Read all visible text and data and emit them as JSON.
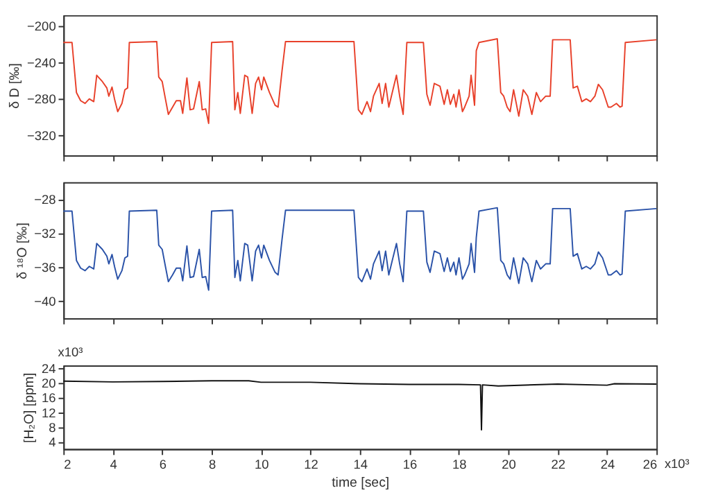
{
  "chart_data": [
    {
      "type": "line",
      "ylabel": "δ D [‰]",
      "tick_labels": "y",
      "grid": false,
      "x": [
        2.0,
        2.35,
        2.53,
        2.7,
        2.88,
        3.05,
        3.23,
        3.35,
        3.58,
        3.76,
        3.84,
        3.97,
        4.07,
        4.2,
        4.37,
        4.49,
        4.6,
        4.67,
        5.78,
        5.86,
        6.0,
        6.13,
        6.25,
        6.42,
        6.57,
        6.74,
        6.83,
        7.0,
        7.13,
        7.27,
        7.5,
        7.62,
        7.76,
        7.88,
        8.0,
        8.85,
        8.94,
        9.06,
        9.16,
        9.34,
        9.46,
        9.64,
        9.78,
        9.9,
        10.02,
        10.11,
        10.34,
        10.57,
        10.69,
        10.85,
        10.99,
        13.76,
        13.94,
        14.08,
        14.29,
        14.43,
        14.55,
        14.78,
        14.9,
        15.04,
        15.17,
        15.31,
        15.48,
        15.61,
        15.75,
        15.9,
        16.57,
        16.71,
        16.84,
        17.01,
        17.24,
        17.41,
        17.54,
        17.66,
        17.8,
        17.89,
        18.01,
        18.15,
        18.24,
        18.42,
        18.5,
        18.64,
        18.71,
        18.82,
        19.56,
        19.7,
        19.82,
        19.96,
        20.08,
        20.22,
        20.43,
        20.61,
        20.79,
        20.96,
        21.14,
        21.31,
        21.52,
        21.7,
        21.8,
        22.51,
        22.63,
        22.8,
        22.98,
        23.16,
        23.33,
        23.51,
        23.65,
        23.82,
        24.05,
        24.16,
        24.38,
        24.53,
        24.61,
        24.74,
        26.0
      ],
      "xlim": [
        2,
        26
      ],
      "xticks": [
        2,
        4,
        6,
        8,
        10,
        12,
        14,
        16,
        18,
        20,
        22,
        24,
        26
      ],
      "ylim": [
        -342,
        -188
      ],
      "yticks": [
        -320,
        -280,
        -240,
        -200
      ],
      "series": [
        {
          "color": "#e8402a",
          "values": [
            -218,
            -218,
            -273,
            -282,
            -285,
            -280,
            -283,
            -254,
            -261,
            -268,
            -277,
            -267,
            -280,
            -294,
            -285,
            -270,
            -268,
            -218,
            -217,
            -256,
            -261,
            -280,
            -297,
            -289,
            -282,
            -282,
            -296,
            -257,
            -292,
            -291,
            -261,
            -292,
            -291,
            -307,
            -218,
            -217,
            -292,
            -273,
            -296,
            -254,
            -256,
            -296,
            -263,
            -256,
            -270,
            -256,
            -273,
            -287,
            -289,
            -249,
            -217,
            -217,
            -292,
            -297,
            -283,
            -294,
            -277,
            -263,
            -285,
            -263,
            -289,
            -273,
            -254,
            -277,
            -297,
            -218,
            -218,
            -275,
            -287,
            -263,
            -266,
            -286,
            -270,
            -286,
            -275,
            -289,
            -270,
            -294,
            -289,
            -277,
            -254,
            -287,
            -227,
            -218,
            -214,
            -273,
            -277,
            -289,
            -294,
            -270,
            -299,
            -270,
            -277,
            -297,
            -273,
            -283,
            -277,
            -277,
            -215,
            -215,
            -268,
            -266,
            -283,
            -280,
            -283,
            -277,
            -264,
            -270,
            -289,
            -289,
            -285,
            -289,
            -288,
            -218,
            -215
          ]
        }
      ]
    },
    {
      "type": "line",
      "ylabel": "δ ¹⁸O [‰]",
      "tick_labels": "y",
      "grid": false,
      "x": [
        2.0,
        2.35,
        2.53,
        2.7,
        2.88,
        3.05,
        3.23,
        3.35,
        3.58,
        3.76,
        3.84,
        3.97,
        4.07,
        4.2,
        4.37,
        4.49,
        4.6,
        4.67,
        5.78,
        5.86,
        6.0,
        6.13,
        6.25,
        6.42,
        6.57,
        6.74,
        6.83,
        7.0,
        7.13,
        7.27,
        7.5,
        7.62,
        7.76,
        7.88,
        8.0,
        8.85,
        8.94,
        9.06,
        9.16,
        9.34,
        9.46,
        9.64,
        9.78,
        9.9,
        10.02,
        10.11,
        10.34,
        10.57,
        10.69,
        10.85,
        10.99,
        13.76,
        13.94,
        14.08,
        14.29,
        14.43,
        14.55,
        14.78,
        14.9,
        15.04,
        15.17,
        15.31,
        15.48,
        15.61,
        15.75,
        15.9,
        16.57,
        16.71,
        16.84,
        17.01,
        17.24,
        17.41,
        17.54,
        17.66,
        17.8,
        17.89,
        18.01,
        18.15,
        18.24,
        18.42,
        18.5,
        18.64,
        18.71,
        18.82,
        19.56,
        19.7,
        19.82,
        19.96,
        20.08,
        20.22,
        20.43,
        20.61,
        20.79,
        20.96,
        21.14,
        21.31,
        21.52,
        21.7,
        21.8,
        22.51,
        22.63,
        22.8,
        22.98,
        23.16,
        23.33,
        23.51,
        23.65,
        23.82,
        24.05,
        24.16,
        24.38,
        24.53,
        24.61,
        24.74,
        26.0
      ],
      "xlim": [
        2,
        26
      ],
      "xticks": [
        2,
        4,
        6,
        8,
        10,
        12,
        14,
        16,
        18,
        20,
        22,
        24,
        26
      ],
      "ylim": [
        -42,
        -26
      ],
      "yticks": [
        -40,
        -36,
        -32,
        -28
      ],
      "series": [
        {
          "color": "#2a52a8",
          "values": [
            -29.4,
            -29.4,
            -35.2,
            -36.1,
            -36.4,
            -35.9,
            -36.2,
            -33.2,
            -33.9,
            -34.7,
            -35.6,
            -34.5,
            -35.9,
            -37.4,
            -36.4,
            -34.9,
            -34.7,
            -29.4,
            -29.3,
            -33.4,
            -33.9,
            -35.9,
            -37.7,
            -36.9,
            -36.1,
            -36.1,
            -37.6,
            -33.5,
            -37.2,
            -37.1,
            -33.9,
            -37.2,
            -37.1,
            -38.7,
            -29.4,
            -29.3,
            -37.2,
            -35.2,
            -37.6,
            -33.2,
            -33.4,
            -37.6,
            -34.1,
            -33.4,
            -34.9,
            -33.4,
            -35.2,
            -36.6,
            -36.9,
            -32.7,
            -29.3,
            -29.3,
            -37.2,
            -37.7,
            -36.2,
            -37.4,
            -35.6,
            -34.1,
            -36.4,
            -34.1,
            -36.9,
            -35.2,
            -33.2,
            -35.6,
            -37.7,
            -29.4,
            -29.4,
            -35.4,
            -36.6,
            -34.1,
            -34.4,
            -36.5,
            -34.9,
            -36.5,
            -35.4,
            -36.9,
            -34.9,
            -37.4,
            -36.9,
            -35.6,
            -33.2,
            -36.6,
            -32.5,
            -29.4,
            -29.0,
            -35.2,
            -35.6,
            -36.9,
            -37.4,
            -34.9,
            -37.9,
            -34.9,
            -35.6,
            -37.7,
            -35.2,
            -36.2,
            -35.6,
            -35.6,
            -29.1,
            -29.1,
            -34.7,
            -34.4,
            -36.2,
            -35.9,
            -36.2,
            -35.6,
            -34.2,
            -34.9,
            -36.9,
            -36.9,
            -36.4,
            -36.9,
            -36.8,
            -29.4,
            -29.1
          ]
        }
      ]
    },
    {
      "type": "line",
      "ylabel": "[H₂O] [ppm]",
      "xlabel": "time [sec]",
      "grid": false,
      "x": [
        2.0,
        4.0,
        6.0,
        8.0,
        9.5,
        10.0,
        12.0,
        14.0,
        16.0,
        18.0,
        18.88,
        18.92,
        18.96,
        19.6,
        22.0,
        24.0,
        24.3,
        26.0
      ],
      "xlim": [
        2,
        26
      ],
      "xticks": [
        2,
        4,
        6,
        8,
        10,
        12,
        14,
        16,
        18,
        20,
        22,
        24,
        26
      ],
      "ylim": [
        2,
        24.8
      ],
      "yticks": [
        4,
        8,
        12,
        16,
        20,
        24
      ],
      "annotations": [
        "x10³",
        "x10³"
      ],
      "series": [
        {
          "color": "#111111",
          "values": [
            20.5,
            20.3,
            20.4,
            20.6,
            20.6,
            20.2,
            20.2,
            19.8,
            19.6,
            19.6,
            19.5,
            7.2,
            19.5,
            19.2,
            19.7,
            19.4,
            19.8,
            19.7
          ]
        }
      ]
    }
  ]
}
